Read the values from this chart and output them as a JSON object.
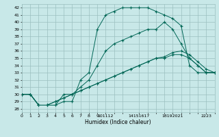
{
  "xlabel": "Humidex (Indice chaleur)",
  "background_color": "#c8e8e8",
  "grid_color": "#9bbfbf",
  "line_color": "#006655",
  "xlim": [
    0,
    23
  ],
  "ylim": [
    27.5,
    42.5
  ],
  "xticks": [
    0,
    1,
    2,
    3,
    4,
    5,
    6,
    7,
    8,
    9,
    10,
    11,
    12,
    14,
    15,
    16,
    17,
    18,
    19,
    20,
    21,
    22,
    23
  ],
  "xtick_labels": [
    "0",
    "1",
    "2",
    "3",
    "4",
    "5",
    "6",
    "7",
    "8",
    "9",
    "101112",
    "",
    "",
    "14151617",
    "",
    "",
    "",
    "18192021",
    "",
    "",
    "",
    "2223",
    ""
  ],
  "yticks": [
    28,
    29,
    30,
    31,
    32,
    33,
    34,
    35,
    36,
    37,
    38,
    39,
    40,
    41,
    42
  ],
  "line1_x": [
    0,
    1,
    2,
    3,
    4,
    5,
    6,
    7,
    8,
    9,
    10,
    11,
    12,
    13,
    14,
    15,
    16,
    17,
    18,
    19,
    20,
    21,
    22,
    23
  ],
  "line1_y": [
    30,
    30,
    28.5,
    28.5,
    28.5,
    29,
    29,
    32,
    33,
    39,
    41,
    41.5,
    42,
    42,
    42,
    42,
    41.5,
    41,
    40.5,
    39.5,
    34,
    33,
    33,
    33
  ],
  "line2_x": [
    0,
    1,
    2,
    3,
    4,
    5,
    6,
    7,
    8,
    9,
    10,
    11,
    12,
    13,
    14,
    15,
    16,
    17,
    18,
    19,
    20,
    21,
    22,
    23
  ],
  "line2_y": [
    30,
    30,
    28.5,
    28.5,
    28.5,
    30,
    30,
    31,
    32,
    34,
    36,
    37,
    37.5,
    38,
    38.5,
    39,
    39,
    40,
    39,
    37,
    35,
    34,
    33,
    33
  ],
  "line3_x": [
    0,
    1,
    2,
    3,
    4,
    5,
    6,
    7,
    8,
    9,
    10,
    11,
    12,
    13,
    14,
    15,
    16,
    17,
    18,
    19,
    20,
    21,
    22,
    23
  ],
  "line3_y": [
    30,
    30,
    28.5,
    28.5,
    29,
    29.5,
    30,
    30.5,
    31,
    31.5,
    32,
    32.5,
    33,
    33.5,
    34,
    34.5,
    35,
    35,
    35.5,
    35.5,
    35,
    34,
    33,
    33
  ],
  "line4_x": [
    0,
    1,
    2,
    3,
    4,
    5,
    6,
    7,
    8,
    9,
    10,
    11,
    12,
    13,
    14,
    15,
    16,
    17,
    18,
    19,
    20,
    21,
    22,
    23
  ],
  "line4_y": [
    30,
    30,
    28.5,
    28.5,
    29,
    29.5,
    30,
    30.5,
    31,
    31.5,
    32,
    32.5,
    33,
    33.5,
    34,
    34.5,
    35,
    35.2,
    35.8,
    36,
    35.5,
    34.5,
    33.5,
    33
  ]
}
